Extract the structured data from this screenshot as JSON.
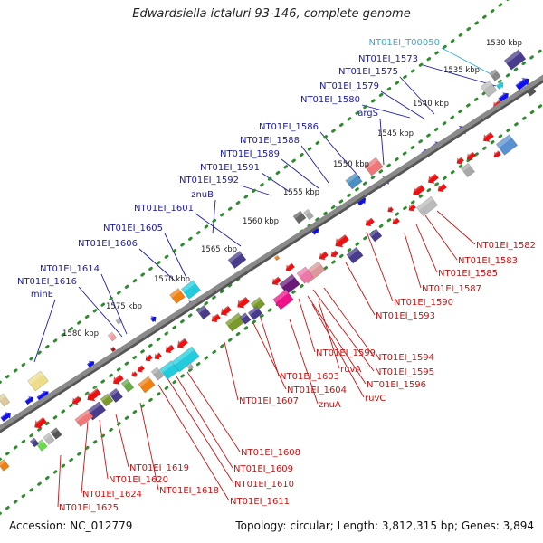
{
  "title": "Edwardsiella ictaluri 93-146, complete genome",
  "footer": {
    "accession": "Accession: NC_012779",
    "topology": "Topology: circular; Length: 3,812,315 bp; Genes: 3,894"
  },
  "colors": {
    "upper_label": "#1a1aaa",
    "lower_label": "#cc1111",
    "trna_label": "#33aadd",
    "forward_gene": "#1010ee",
    "reverse_gene": "#ee1111",
    "backbone": "#8a8a8a",
    "tick_dots": "#2e8b2e"
  },
  "scale_labels": [
    "1530 kbp",
    "1535 kbp",
    "1540 kbp",
    "1545 kbp",
    "1550 kbp",
    "1555 kbp",
    "1560 kbp",
    "1565 kbp",
    "1570 kbp",
    "1575 kbp",
    "1580 kbp"
  ],
  "upper_labels": [
    "NT01EI_T00050",
    "NT01EI_1573",
    "NT01EI_1575",
    "NT01EI_1579",
    "NT01EI_1580",
    "argS",
    "NT01EI_1586",
    "NT01EI_1588",
    "NT01EI_1589",
    "NT01EI_1591",
    "NT01EI_1592",
    "znuB",
    "NT01EI_1601",
    "NT01EI_1605",
    "NT01EI_1606",
    "NT01EI_1614",
    "NT01EI_1616",
    "minE"
  ],
  "lower_labels": [
    "NT01EI_1582",
    "NT01EI_1583",
    "NT01EI_1585",
    "NT01EI_1587",
    "NT01EI_1590",
    "NT01EI_1593",
    "NT01EI_1594",
    "NT01EI_1595",
    "NT01EI_1596",
    "NT01EI_1599",
    "ruvA",
    "ruvC",
    "NT01EI_1603",
    "NT01EI_1604",
    "znuA",
    "NT01EI_1607",
    "NT01EI_1608",
    "NT01EI_1609",
    "NT01EI_1610",
    "NT01EI_1611",
    "NT01EI_1618",
    "NT01EI_1619",
    "NT01EI_1620",
    "NT01EI_1624",
    "NT01EI_1625"
  ]
}
